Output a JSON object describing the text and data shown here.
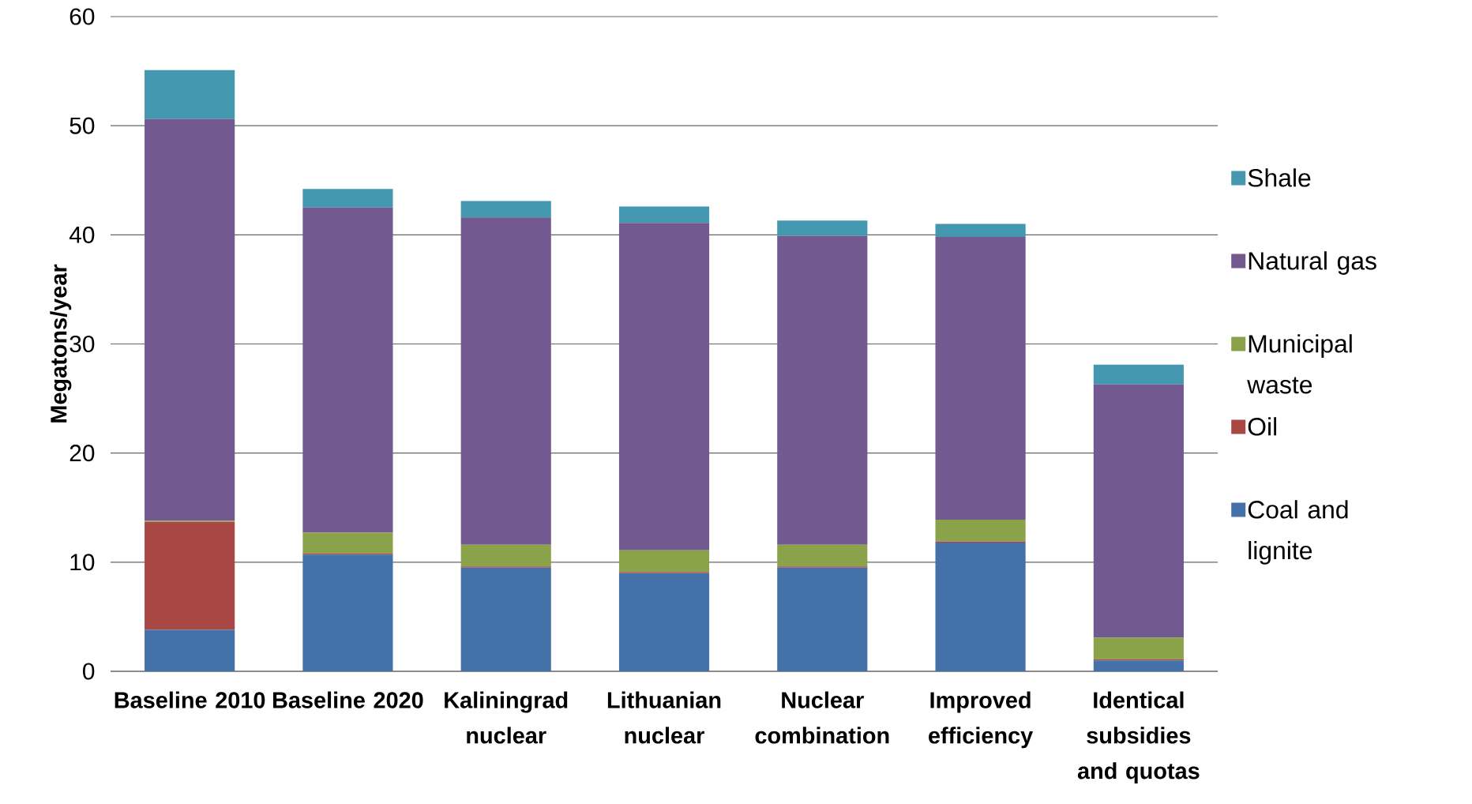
{
  "chart_data": {
    "type": "bar",
    "stacked": true,
    "ylabel": "Megatons/year",
    "categories": [
      "Baseline 2010",
      "Baseline 2020",
      "Kaliningrad nuclear",
      "Lithuanian nuclear",
      "Nuclear combination",
      "Improved efficiency",
      "Identical subsidies and quotas"
    ],
    "series": [
      {
        "name": "Coal and lignite",
        "color": "#4472a8",
        "values": [
          3.8,
          10.7,
          9.5,
          9.0,
          9.5,
          11.8,
          1.0
        ]
      },
      {
        "name": "Oil",
        "color": "#a84744",
        "values": [
          9.9,
          0.1,
          0.1,
          0.1,
          0.1,
          0.1,
          0.1
        ]
      },
      {
        "name": "Municipal waste",
        "color": "#8aa34b",
        "values": [
          0.1,
          1.9,
          2.0,
          2.0,
          2.0,
          2.0,
          2.0
        ]
      },
      {
        "name": "Natural gas",
        "color": "#72598f",
        "values": [
          36.8,
          29.8,
          30.0,
          30.0,
          28.3,
          25.9,
          23.2
        ]
      },
      {
        "name": "Shale",
        "color": "#4397ae",
        "values": [
          4.5,
          1.7,
          1.5,
          1.5,
          1.4,
          1.2,
          1.8
        ]
      }
    ],
    "ylim": [
      0,
      60
    ],
    "yticks": [
      0,
      10,
      20,
      30,
      40,
      50,
      60
    ],
    "grid": "y",
    "legend": "right"
  }
}
